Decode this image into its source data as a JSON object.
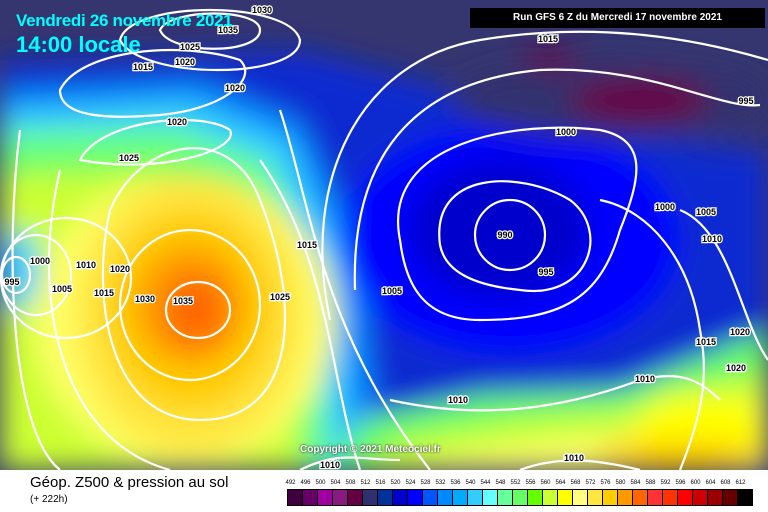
{
  "map": {
    "valid_date": "Vendredi 26 novembre 2021",
    "valid_time": "14:00 locale",
    "run_info": "Run GFS 6 Z du Mercredi 17 novembre 2021",
    "copyright": "Copyright © 2021 Meteociel.fr",
    "isobar_labels": [
      "1030",
      "1035",
      "1025",
      "1020",
      "1015",
      "1020",
      "1020",
      "1025",
      "1015",
      "1030",
      "1035",
      "1025",
      "1005",
      "1000",
      "990",
      "995",
      "1000",
      "1005",
      "1010",
      "995",
      "1015",
      "1020",
      "1020",
      "1010",
      "1010",
      "1010",
      "1010",
      "1015",
      "995",
      "1000",
      "1005",
      "1010",
      "1015",
      "1020"
    ],
    "pressure_systems": [
      "high-mid-atlantic",
      "low-north-sea"
    ]
  },
  "legend": {
    "title": "Géop. Z500 & pression au sol",
    "subtitle": "(+ 222h)",
    "scale_labels": [
      "492",
      "496",
      "500",
      "504",
      "508",
      "512",
      "516",
      "520",
      "524",
      "528",
      "532",
      "536",
      "540",
      "544",
      "548",
      "552",
      "556",
      "560",
      "564",
      "568",
      "572",
      "576",
      "580",
      "584",
      "588",
      "592",
      "596",
      "600",
      "604",
      "608",
      "612"
    ],
    "scale_colors": [
      "#400040",
      "#660066",
      "#a000a0",
      "#881a80",
      "#660044",
      "#303070",
      "#003399",
      "#0000cc",
      "#0000ff",
      "#0055ff",
      "#0088ff",
      "#00aaff",
      "#33ccff",
      "#66ffff",
      "#66ff99",
      "#66ff66",
      "#66ff00",
      "#ccff33",
      "#ffff00",
      "#ffff80",
      "#ffe640",
      "#ffcc00",
      "#ff9900",
      "#ff6600",
      "#ff3333",
      "#ff3300",
      "#ff0000",
      "#cc0000",
      "#990000",
      "#660000",
      "#000000"
    ]
  }
}
